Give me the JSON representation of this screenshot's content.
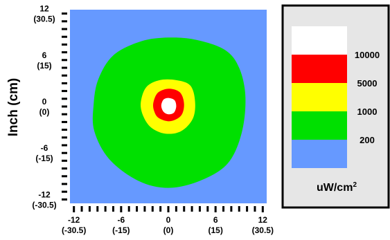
{
  "chart_data": {
    "type": "heatmap",
    "ylabel": "Inch (cm)",
    "x_ticks": [
      {
        "value": -12,
        "label": "-12",
        "sublabel": "(-30.5)"
      },
      {
        "value": -6,
        "label": "-6",
        "sublabel": "(-15)"
      },
      {
        "value": 0,
        "label": "0",
        "sublabel": "(0)"
      },
      {
        "value": 6,
        "label": "6",
        "sublabel": "(15)"
      },
      {
        "value": 12,
        "label": "12",
        "sublabel": "(30.5)"
      }
    ],
    "y_ticks": [
      {
        "value": 12,
        "label": "12",
        "sublabel": "(30.5)"
      },
      {
        "value": 6,
        "label": "6",
        "sublabel": "(15)"
      },
      {
        "value": 0,
        "label": "0",
        "sublabel": "(0)"
      },
      {
        "value": -6,
        "label": "-6",
        "sublabel": "(-15)"
      },
      {
        "value": -12,
        "label": "-12",
        "sublabel": "(-30.5)"
      }
    ],
    "xlim": [
      -12.5,
      12.5
    ],
    "ylim": [
      -12.5,
      12.5
    ],
    "legend": {
      "unit": "uW/cm",
      "unit_superscript": "2",
      "levels": [
        {
          "label": "",
          "color": "#ffffff"
        },
        {
          "label": "10000",
          "color": "#ff0000"
        },
        {
          "label": "5000",
          "color": "#ffff00"
        },
        {
          "label": "1000",
          "color": "#00e000"
        },
        {
          "label": "200",
          "color": "#6699ff"
        }
      ]
    },
    "contours": [
      {
        "color": "#00e000",
        "points": [
          [
            -9.5,
            0.2
          ],
          [
            -8.9,
            3.5
          ],
          [
            -7,
            6.6
          ],
          [
            -3.5,
            8.4
          ],
          [
            0,
            8.9
          ],
          [
            3.6,
            8.6
          ],
          [
            7.2,
            7.3
          ],
          [
            9,
            5
          ],
          [
            9.8,
            1.2
          ],
          [
            9.3,
            -3.5
          ],
          [
            7.5,
            -7.4
          ],
          [
            4,
            -9.6
          ],
          [
            0,
            -10.5
          ],
          [
            -3.8,
            -9.6
          ],
          [
            -7.5,
            -6.8
          ],
          [
            -9.4,
            -3.2
          ]
        ]
      },
      {
        "color": "#ffff00",
        "points": [
          [
            -3.5,
            0.5
          ],
          [
            -2.8,
            2.5
          ],
          [
            -1.1,
            3.4
          ],
          [
            1,
            3.4
          ],
          [
            2.8,
            2.7
          ],
          [
            3.4,
            0.6
          ],
          [
            3.1,
            -1.6
          ],
          [
            1.6,
            -3.2
          ],
          [
            -0.4,
            -3.5
          ],
          [
            -2.2,
            -2.7
          ],
          [
            -3.2,
            -1.2
          ]
        ]
      },
      {
        "color": "#ff0000",
        "points": [
          [
            -1.9,
            0.5
          ],
          [
            -1.3,
            1.8
          ],
          [
            0.1,
            2.3
          ],
          [
            1.5,
            1.8
          ],
          [
            2,
            0.3
          ],
          [
            1.6,
            -1.2
          ],
          [
            0.2,
            -1.9
          ],
          [
            -1.2,
            -1.5
          ],
          [
            -1.8,
            -0.6
          ]
        ]
      },
      {
        "color": "#ffffff",
        "points": [
          [
            -0.9,
            0.1
          ],
          [
            -0.6,
            0.9
          ],
          [
            0.1,
            1.1
          ],
          [
            0.8,
            0.8
          ],
          [
            1,
            0
          ],
          [
            0.7,
            -0.8
          ],
          [
            0,
            -1
          ],
          [
            -0.6,
            -0.7
          ]
        ]
      }
    ],
    "background_color": "#6699ff",
    "grid": false
  }
}
